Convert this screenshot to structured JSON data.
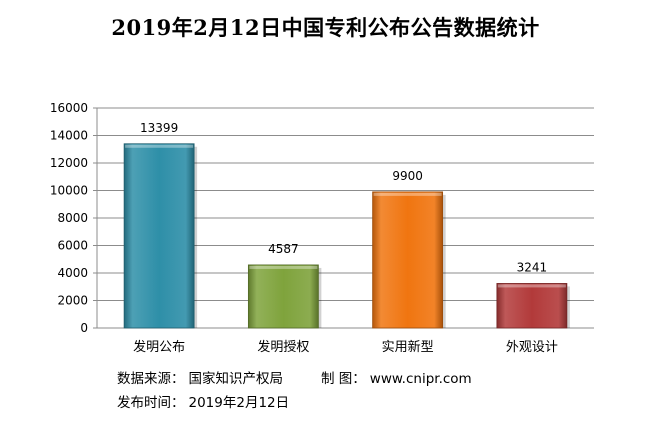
{
  "chart_data": {
    "type": "bar",
    "title": "2019年2月12日中国专利公布公告数据统计",
    "categories": [
      "发明公布",
      "发明授权",
      "实用新型",
      "外观设计"
    ],
    "values": [
      13399,
      4587,
      9900,
      3241
    ],
    "data_labels": [
      "13399",
      "4587",
      "9900",
      "3241"
    ],
    "bar_colors": [
      "#2e8fa8",
      "#7fa33c",
      "#f07510",
      "#b23a3a"
    ],
    "ylim": [
      0,
      16000
    ],
    "yticks": [
      0,
      2000,
      4000,
      6000,
      8000,
      10000,
      12000,
      14000,
      16000
    ],
    "ytick_labels": [
      "0",
      "2000",
      "4000",
      "6000",
      "8000",
      "10000",
      "12000",
      "14000",
      "16000"
    ],
    "grid": true,
    "legend": false
  },
  "footer": {
    "source_label": "数据来源：",
    "source_value": "国家知识产权局",
    "maker_label": "制  图：",
    "maker_value": "www.cnipr.com",
    "date_label": "发布时间：",
    "date_value": "2019年2月12日"
  }
}
